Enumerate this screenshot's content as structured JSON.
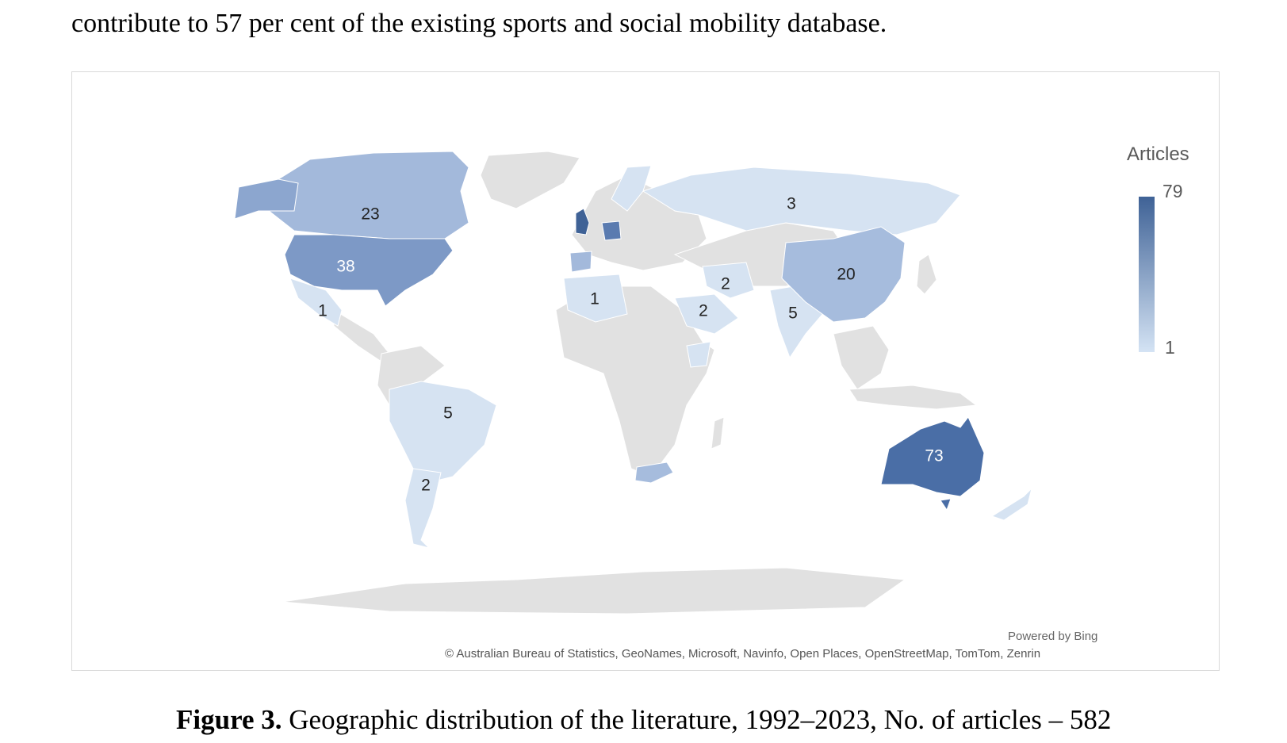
{
  "paragraph": "contribute to 57 per cent of the existing sports and social mobility database.",
  "legend": {
    "title": "Articles",
    "max": "79",
    "min": "1"
  },
  "attribution": {
    "powered_by": "Powered by Bing",
    "credits": "© Australian Bureau of Statistics, GeoNames, Microsoft, Navinfo, Open Places, OpenStreetMap, TomTom, Zenrin"
  },
  "caption": {
    "label": "Figure 3.",
    "text": " Geographic distribution of the literature, 1992–2023, No. of articles – 582"
  },
  "colors": {
    "no_data": "#e1e1e1",
    "scale_min": "#d4e3f4",
    "scale_max": "#3f6296"
  },
  "regions": [
    {
      "name": "Australia",
      "value": 73,
      "label": "73"
    },
    {
      "name": "United States",
      "value": 38,
      "label": "38"
    },
    {
      "name": "Canada",
      "value": 23,
      "label": "23"
    },
    {
      "name": "China",
      "value": 20,
      "label": "20"
    },
    {
      "name": "Brazil",
      "value": 5,
      "label": "5"
    },
    {
      "name": "India",
      "value": 5,
      "label": "5"
    },
    {
      "name": "Russia",
      "value": 3,
      "label": "3"
    },
    {
      "name": "Argentina",
      "value": 2,
      "label": "2"
    },
    {
      "name": "Iran",
      "value": 2,
      "label": "2"
    },
    {
      "name": "Saudi Arabia",
      "value": 2,
      "label": "2"
    },
    {
      "name": "Mexico",
      "value": 1,
      "label": "1"
    },
    {
      "name": "Algeria",
      "value": 1,
      "label": "1"
    }
  ]
}
